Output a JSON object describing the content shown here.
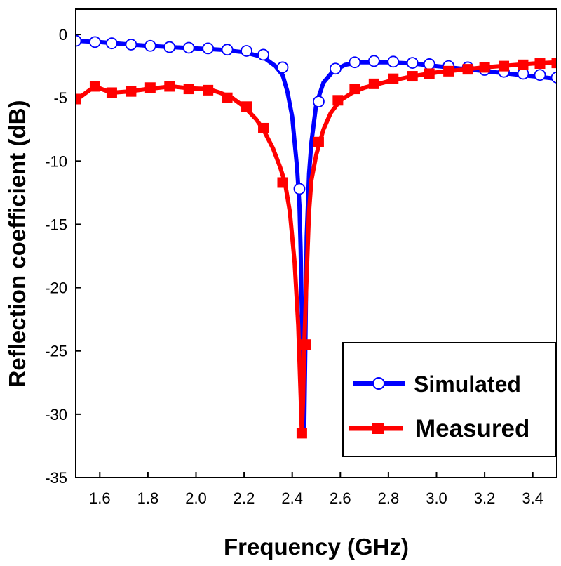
{
  "chart_data": {
    "type": "line",
    "title": "",
    "xlabel": "Frequency (GHz)",
    "ylabel": "Reflection coefficient (dB)",
    "xlim": [
      1.5,
      3.5
    ],
    "ylim": [
      -35,
      2
    ],
    "x_ticks": [
      1.6,
      1.8,
      2.0,
      2.2,
      2.4,
      2.6,
      2.8,
      3.0,
      3.2,
      3.4
    ],
    "x_tick_labels": [
      "1.6",
      "1.8",
      "2.0",
      "2.2",
      "2.4",
      "2.6",
      "2.8",
      "3.0",
      "3.2",
      "3.4"
    ],
    "y_ticks": [
      0,
      -5,
      -10,
      -15,
      -20,
      -25,
      -30,
      -35
    ],
    "y_tick_labels": [
      "0",
      "-5",
      "-10",
      "-15",
      "-20",
      "-25",
      "-30",
      "-35"
    ],
    "legend_position": "bottom-right",
    "series": [
      {
        "name": "Simulated",
        "color": "#0000ff",
        "marker": "open-circle",
        "curve": [
          [
            1.5,
            -0.5
          ],
          [
            1.6,
            -0.6
          ],
          [
            1.7,
            -0.75
          ],
          [
            1.8,
            -0.9
          ],
          [
            1.9,
            -1.0
          ],
          [
            2.0,
            -1.1
          ],
          [
            2.1,
            -1.2
          ],
          [
            2.2,
            -1.4
          ],
          [
            2.28,
            -1.8
          ],
          [
            2.33,
            -2.5
          ],
          [
            2.36,
            -3.2
          ],
          [
            2.38,
            -4.5
          ],
          [
            2.4,
            -6.5
          ],
          [
            2.41,
            -8.5
          ],
          [
            2.42,
            -10.5
          ],
          [
            2.43,
            -13.5
          ],
          [
            2.435,
            -17
          ],
          [
            2.44,
            -22
          ],
          [
            2.445,
            -27
          ],
          [
            2.45,
            -31
          ],
          [
            2.455,
            -24
          ],
          [
            2.46,
            -16
          ],
          [
            2.47,
            -11
          ],
          [
            2.48,
            -8.5
          ],
          [
            2.5,
            -5.5
          ],
          [
            2.53,
            -3.8
          ],
          [
            2.57,
            -2.9
          ],
          [
            2.62,
            -2.4
          ],
          [
            2.68,
            -2.2
          ],
          [
            2.8,
            -2.2
          ],
          [
            2.9,
            -2.3
          ],
          [
            3.0,
            -2.5
          ],
          [
            3.1,
            -2.7
          ],
          [
            3.2,
            -2.9
          ],
          [
            3.3,
            -3.1
          ],
          [
            3.4,
            -3.3
          ],
          [
            3.5,
            -3.5
          ]
        ],
        "markers": [
          [
            1.5,
            -0.5
          ],
          [
            1.58,
            -0.6
          ],
          [
            1.65,
            -0.7
          ],
          [
            1.73,
            -0.8
          ],
          [
            1.81,
            -0.9
          ],
          [
            1.89,
            -1.0
          ],
          [
            1.97,
            -1.05
          ],
          [
            2.05,
            -1.1
          ],
          [
            2.13,
            -1.2
          ],
          [
            2.21,
            -1.3
          ],
          [
            2.28,
            -1.6
          ],
          [
            2.36,
            -2.6
          ],
          [
            2.43,
            -12.2
          ],
          [
            2.51,
            -5.3
          ],
          [
            2.58,
            -2.7
          ],
          [
            2.66,
            -2.2
          ],
          [
            2.74,
            -2.1
          ],
          [
            2.82,
            -2.15
          ],
          [
            2.9,
            -2.25
          ],
          [
            2.97,
            -2.35
          ],
          [
            3.05,
            -2.5
          ],
          [
            3.13,
            -2.6
          ],
          [
            3.2,
            -2.8
          ],
          [
            3.28,
            -2.95
          ],
          [
            3.36,
            -3.1
          ],
          [
            3.43,
            -3.2
          ],
          [
            3.5,
            -3.4
          ]
        ]
      },
      {
        "name": "Measured",
        "color": "#ff0000",
        "marker": "filled-square",
        "curve": [
          [
            1.5,
            -5.2
          ],
          [
            1.55,
            -4.5
          ],
          [
            1.58,
            -4.1
          ],
          [
            1.62,
            -4.4
          ],
          [
            1.65,
            -4.6
          ],
          [
            1.72,
            -4.5
          ],
          [
            1.8,
            -4.3
          ],
          [
            1.9,
            -4.1
          ],
          [
            1.97,
            -4.25
          ],
          [
            2.05,
            -4.3
          ],
          [
            2.1,
            -4.6
          ],
          [
            2.15,
            -5.0
          ],
          [
            2.2,
            -5.7
          ],
          [
            2.25,
            -6.7
          ],
          [
            2.28,
            -7.5
          ],
          [
            2.32,
            -9.0
          ],
          [
            2.35,
            -10.5
          ],
          [
            2.37,
            -11.7
          ],
          [
            2.39,
            -14.0
          ],
          [
            2.41,
            -18.0
          ],
          [
            2.425,
            -23.0
          ],
          [
            2.435,
            -28.5
          ],
          [
            2.44,
            -31.5
          ],
          [
            2.445,
            -29.0
          ],
          [
            2.45,
            -24.5
          ],
          [
            2.46,
            -19.0
          ],
          [
            2.47,
            -14.0
          ],
          [
            2.48,
            -11.5
          ],
          [
            2.5,
            -9.5
          ],
          [
            2.53,
            -7.5
          ],
          [
            2.56,
            -6.2
          ],
          [
            2.6,
            -5.2
          ],
          [
            2.65,
            -4.6
          ],
          [
            2.7,
            -4.2
          ],
          [
            2.8,
            -3.7
          ],
          [
            2.9,
            -3.3
          ],
          [
            3.0,
            -3.0
          ],
          [
            3.1,
            -2.8
          ],
          [
            3.2,
            -2.6
          ],
          [
            3.3,
            -2.45
          ],
          [
            3.4,
            -2.3
          ],
          [
            3.5,
            -2.2
          ]
        ],
        "markers": [
          [
            1.5,
            -5.1
          ],
          [
            1.58,
            -4.1
          ],
          [
            1.65,
            -4.6
          ],
          [
            1.73,
            -4.5
          ],
          [
            1.81,
            -4.2
          ],
          [
            1.89,
            -4.1
          ],
          [
            1.97,
            -4.3
          ],
          [
            2.05,
            -4.4
          ],
          [
            2.13,
            -5.0
          ],
          [
            2.21,
            -5.7
          ],
          [
            2.28,
            -7.4
          ],
          [
            2.36,
            -11.7
          ],
          [
            2.44,
            -31.5
          ],
          [
            2.455,
            -24.5
          ],
          [
            2.51,
            -8.5
          ],
          [
            2.59,
            -5.2
          ],
          [
            2.66,
            -4.3
          ],
          [
            2.74,
            -3.9
          ],
          [
            2.82,
            -3.5
          ],
          [
            2.9,
            -3.3
          ],
          [
            2.97,
            -3.1
          ],
          [
            3.05,
            -2.9
          ],
          [
            3.13,
            -2.75
          ],
          [
            3.2,
            -2.6
          ],
          [
            3.28,
            -2.5
          ],
          [
            3.36,
            -2.4
          ],
          [
            3.43,
            -2.3
          ],
          [
            3.5,
            -2.25
          ]
        ]
      }
    ]
  }
}
